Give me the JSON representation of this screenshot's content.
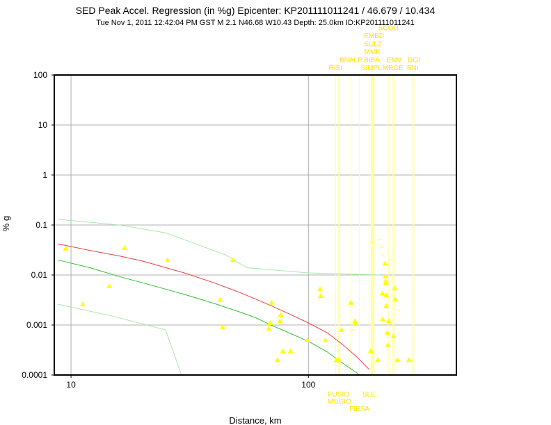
{
  "header": {
    "title": "SED Peak Accel. Regression (in %g) Epicenter: KP201111011241 / 46.679 / 10.434",
    "subtitle": "Tue Nov  1, 2011 12:42:04 PM GST   M 2.1   N46.68 W10.43   Depth: 25.0km   ID:KP201111011241"
  },
  "chart_data": {
    "type": "scatter",
    "xscale": "log",
    "yscale": "log",
    "xlabel": "Distance, km",
    "ylabel": "% g",
    "xlim": [
      8.5,
      420
    ],
    "ylim": [
      0.0001,
      100
    ],
    "x_ticks": [
      {
        "v": 10,
        "label": "10"
      },
      {
        "v": 100,
        "label": "100"
      }
    ],
    "y_ticks": [
      {
        "v": 100,
        "label": "100"
      },
      {
        "v": 10,
        "label": "10"
      },
      {
        "v": 1,
        "label": "1"
      },
      {
        "v": 0.1,
        "label": "0.1"
      },
      {
        "v": 0.01,
        "label": "0.01"
      },
      {
        "v": 0.001,
        "label": "0.001"
      },
      {
        "v": 0.0001,
        "label": "0.0001"
      }
    ],
    "grid": true,
    "colors": {
      "points": "#ffff00",
      "regression": "#e84040",
      "mean": "#30c030",
      "bounds": "#a8e8a8",
      "station_lines": "#ffff99",
      "station_labels": "#ffe000",
      "axes": "#000000",
      "grid": "#b0b0b0"
    },
    "regression_curve": {
      "x": [
        8.8,
        12,
        16,
        20,
        30,
        40,
        50,
        60,
        70,
        80,
        100,
        120,
        140,
        160,
        180
      ],
      "y": [
        0.042,
        0.031,
        0.024,
        0.019,
        0.011,
        0.007,
        0.0047,
        0.0033,
        0.0024,
        0.0018,
        0.0011,
        0.0007,
        0.0004,
        0.00023,
        0.00013
      ]
    },
    "mean_curve": {
      "x": [
        8.8,
        12,
        16,
        20,
        30,
        40,
        50,
        60,
        70,
        80,
        100,
        120,
        140,
        160,
        178
      ],
      "y": [
        0.02,
        0.014,
        0.0093,
        0.007,
        0.0041,
        0.0027,
        0.0019,
        0.0014,
        0.00098,
        0.00075,
        0.00047,
        0.00029,
        0.00017,
        0.00011,
        7e-05
      ]
    },
    "upper_bound": {
      "x": [
        8.8,
        16,
        25,
        45,
        55,
        100,
        200
      ],
      "y": [
        0.13,
        0.1,
        0.07,
        0.025,
        0.014,
        0.011,
        0.01
      ]
    },
    "lower_bound": {
      "x": [
        8.8,
        15,
        25,
        30
      ],
      "y": [
        0.0026,
        0.0015,
        0.0008,
        7e-05
      ]
    },
    "points": [
      {
        "x": 9.5,
        "y": 0.034
      },
      {
        "x": 11.2,
        "y": 0.0026
      },
      {
        "x": 14.5,
        "y": 0.006
      },
      {
        "x": 16.8,
        "y": 0.035
      },
      {
        "x": 25.5,
        "y": 0.02
      },
      {
        "x": 42.5,
        "y": 0.0032
      },
      {
        "x": 43.5,
        "y": 0.0009
      },
      {
        "x": 48,
        "y": 0.02
      },
      {
        "x": 68,
        "y": 0.00085
      },
      {
        "x": 69,
        "y": 0.0011
      },
      {
        "x": 70,
        "y": 0.0028
      },
      {
        "x": 74,
        "y": 0.0002
      },
      {
        "x": 76,
        "y": 0.0012
      },
      {
        "x": 76.5,
        "y": 0.0016
      },
      {
        "x": 78,
        "y": 0.0003
      },
      {
        "x": 84,
        "y": 0.0003
      },
      {
        "x": 99,
        "y": 0.0005
      },
      {
        "x": 112,
        "y": 0.0052
      },
      {
        "x": 112.5,
        "y": 0.0038
      },
      {
        "x": 118,
        "y": 0.0005
      },
      {
        "x": 131,
        "y": 0.0002
      },
      {
        "x": 133.5,
        "y": 0.0002
      },
      {
        "x": 135,
        "y": 0.0002
      },
      {
        "x": 138,
        "y": 0.0008
      },
      {
        "x": 151,
        "y": 0.0028
      },
      {
        "x": 157,
        "y": 0.0012
      },
      {
        "x": 158,
        "y": 0.0011
      },
      {
        "x": 183,
        "y": 0.0003
      },
      {
        "x": 184,
        "y": 0.0003
      },
      {
        "x": 196,
        "y": 0.0002
      },
      {
        "x": 205,
        "y": 0.0043
      },
      {
        "x": 205.5,
        "y": 0.0013
      },
      {
        "x": 210,
        "y": 0.017
      },
      {
        "x": 211,
        "y": 0.0095
      },
      {
        "x": 211.5,
        "y": 0.0075
      },
      {
        "x": 212,
        "y": 0.0068
      },
      {
        "x": 212.5,
        "y": 0.0024
      },
      {
        "x": 213,
        "y": 0.0039
      },
      {
        "x": 215,
        "y": 0.0007
      },
      {
        "x": 216,
        "y": 0.0004
      },
      {
        "x": 218,
        "y": 0.0012
      },
      {
        "x": 228,
        "y": 0.0006
      },
      {
        "x": 231,
        "y": 0.0054
      },
      {
        "x": 232,
        "y": 0.0033
      },
      {
        "x": 237,
        "y": 0.0002
      },
      {
        "x": 265,
        "y": 0.0002
      }
    ],
    "small_marks": [
      {
        "x": 184,
        "y": 0.045
      },
      {
        "x": 199,
        "y": 0.051
      },
      {
        "x": 203,
        "y": 0.036
      },
      {
        "x": 206,
        "y": 0.025
      },
      {
        "x": 222,
        "y": 0.02
      },
      {
        "x": 153,
        "y": 0.0008
      },
      {
        "x": 238,
        "y": 0.002
      },
      {
        "x": 273,
        "y": 0.0002
      }
    ],
    "stations_top": [
      {
        "label": "RISI",
        "x": 130
      },
      {
        "label": "BNALP",
        "x": 151
      },
      {
        "label": "SIMPL",
        "x": 184
      },
      {
        "label": "MMK",
        "x": 186
      },
      {
        "label": "BIBA",
        "x": 185
      },
      {
        "label": "SULZ",
        "x": 187
      },
      {
        "label": "EMBD",
        "x": 189
      },
      {
        "label": "SCOU",
        "x": 217
      },
      {
        "label": "MRGE",
        "x": 227
      },
      {
        "label": "EMV",
        "x": 230
      },
      {
        "label": "BNI",
        "x": 275
      },
      {
        "label": "DOI",
        "x": 278
      }
    ],
    "stations_bottom": [
      {
        "label": "MUGIO",
        "x": 135
      },
      {
        "label": "FUSIO",
        "x": 134
      },
      {
        "label": "FIESA",
        "x": 164
      },
      {
        "label": "SLE",
        "x": 180
      }
    ]
  }
}
